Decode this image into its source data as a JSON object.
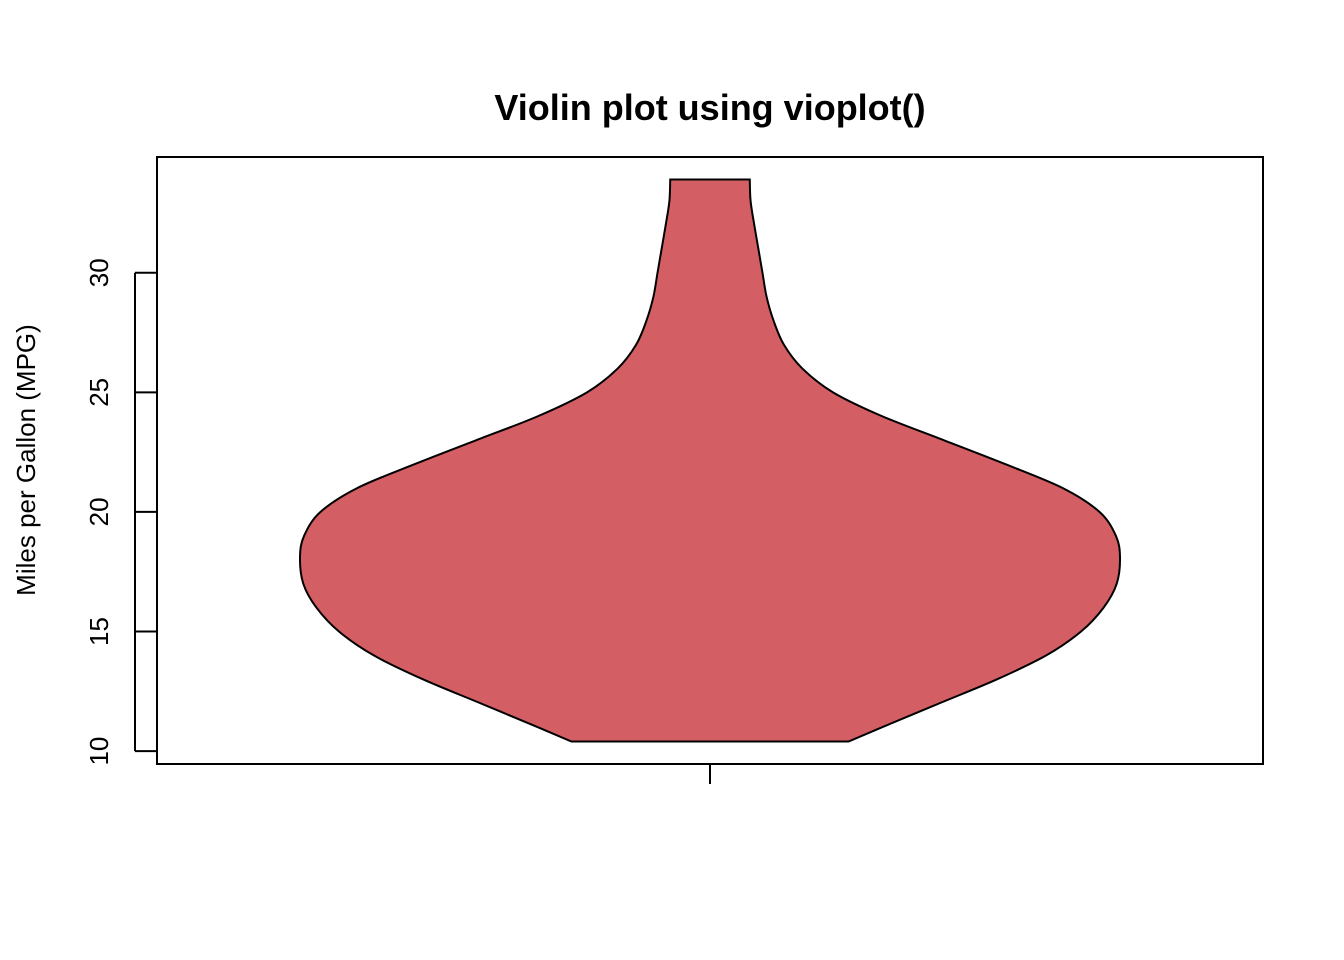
{
  "chart_data": {
    "type": "violin",
    "title": "Violin plot using vioplot()",
    "xlabel": "",
    "ylabel": "Miles per Gallon (MPG)",
    "ylim": [
      9.46,
      34.84
    ],
    "y_ticks": [
      10,
      15,
      20,
      25,
      30
    ],
    "grid": false,
    "legend": "none",
    "fill_color": "#D35F65",
    "line_color": "#000000",
    "series": [
      {
        "data_min": 10.4,
        "data_max": 33.9,
        "density_profile": [
          {
            "y": 10.4,
            "w": 0.338
          },
          {
            "y": 11.0,
            "w": 0.42
          },
          {
            "y": 12.0,
            "w": 0.56
          },
          {
            "y": 13.0,
            "w": 0.7
          },
          {
            "y": 14.0,
            "w": 0.82
          },
          {
            "y": 15.0,
            "w": 0.905
          },
          {
            "y": 16.0,
            "w": 0.96
          },
          {
            "y": 17.0,
            "w": 0.992
          },
          {
            "y": 18.1,
            "w": 1.0
          },
          {
            "y": 19.0,
            "w": 0.99
          },
          {
            "y": 20.0,
            "w": 0.95
          },
          {
            "y": 21.0,
            "w": 0.86
          },
          {
            "y": 22.0,
            "w": 0.72
          },
          {
            "y": 23.0,
            "w": 0.57
          },
          {
            "y": 24.0,
            "w": 0.42
          },
          {
            "y": 25.0,
            "w": 0.3
          },
          {
            "y": 26.0,
            "w": 0.225
          },
          {
            "y": 27.0,
            "w": 0.18
          },
          {
            "y": 28.0,
            "w": 0.155
          },
          {
            "y": 29.0,
            "w": 0.138
          },
          {
            "y": 30.0,
            "w": 0.128
          },
          {
            "y": 31.0,
            "w": 0.118
          },
          {
            "y": 32.0,
            "w": 0.108
          },
          {
            "y": 33.0,
            "w": 0.099
          },
          {
            "y": 33.9,
            "w": 0.097
          }
        ]
      }
    ]
  }
}
